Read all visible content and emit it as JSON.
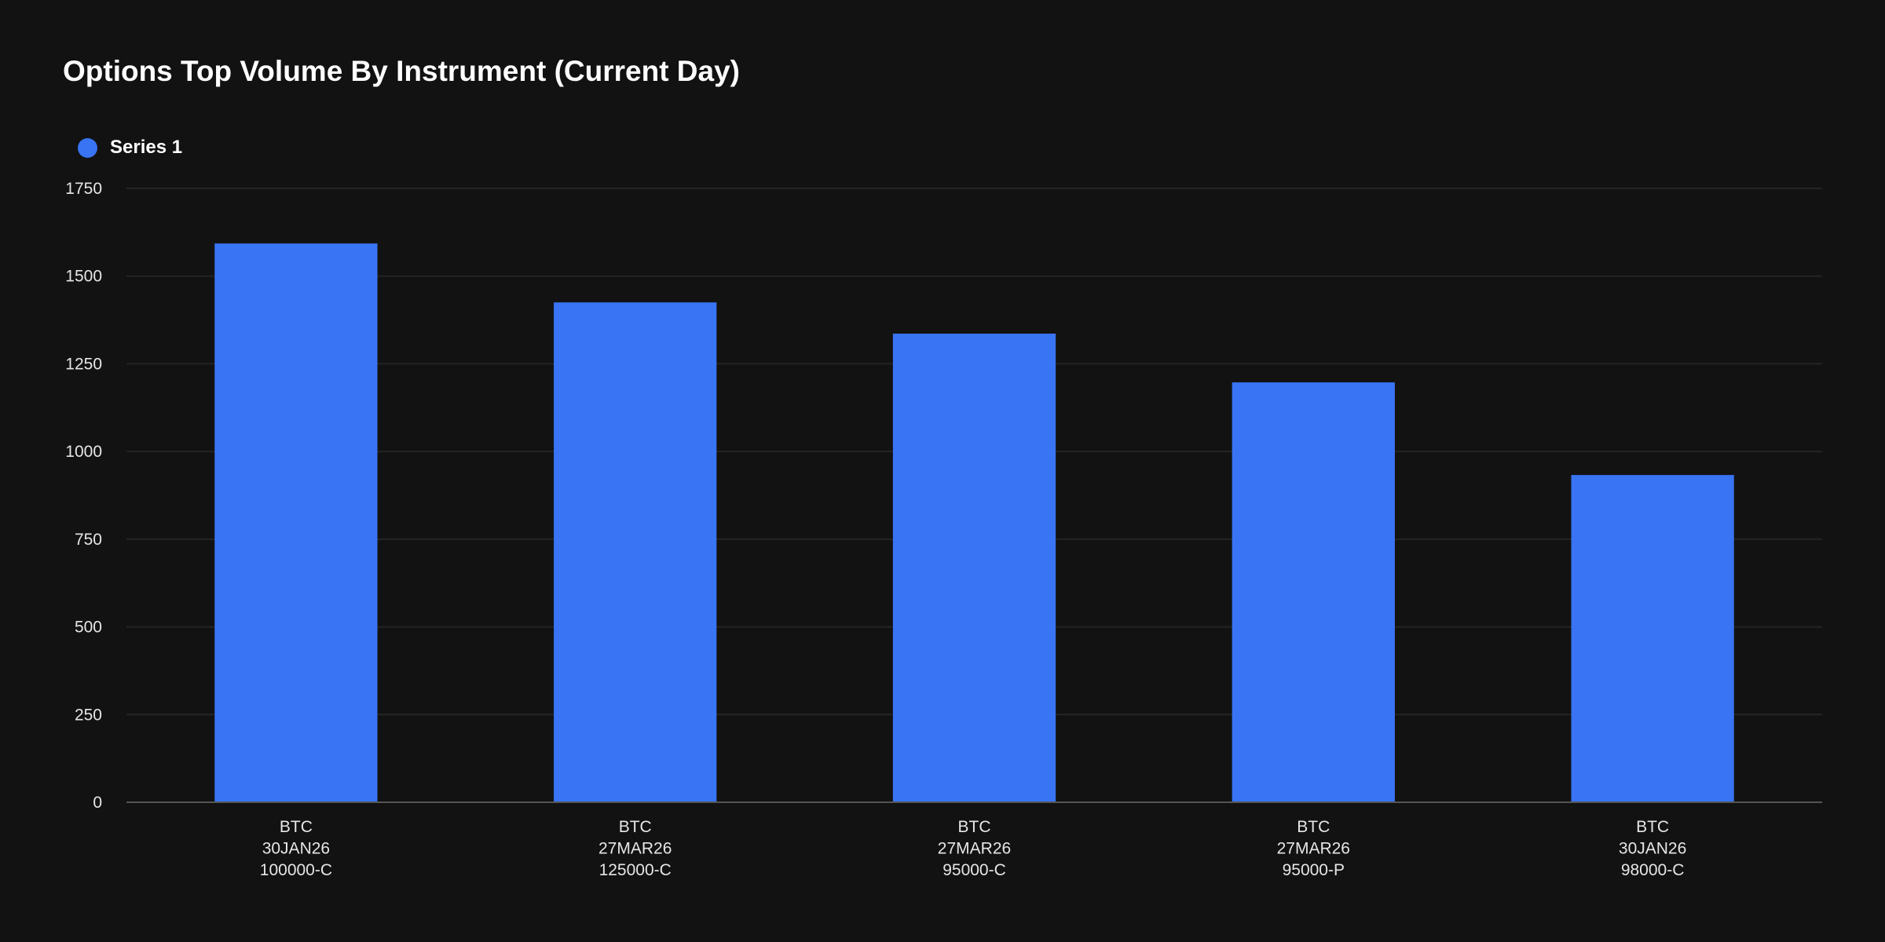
{
  "chart_data": {
    "type": "bar",
    "title": "Options Top Volume By Instrument (Current Day)",
    "xlabel": "",
    "ylabel": "",
    "categories": [
      [
        "BTC",
        "30JAN26",
        "100000-C"
      ],
      [
        "BTC",
        "27MAR26",
        "125000-C"
      ],
      [
        "BTC",
        "27MAR26",
        "95000-C"
      ],
      [
        "BTC",
        "27MAR26",
        "95000-P"
      ],
      [
        "BTC",
        "30JAN26",
        "98000-C"
      ]
    ],
    "series": [
      {
        "name": "Series 1",
        "values": [
          1593,
          1425,
          1336,
          1197,
          933
        ],
        "color": "#3874f4"
      }
    ],
    "ylim": [
      0,
      1750
    ],
    "yticks": [
      "0",
      "250",
      "500",
      "750",
      "1000",
      "1250",
      "1500",
      "1750"
    ],
    "grid": true,
    "legend_position": "top-left"
  },
  "colors": {
    "background": "#121212",
    "grid": "#242424",
    "axis": "#555555"
  }
}
